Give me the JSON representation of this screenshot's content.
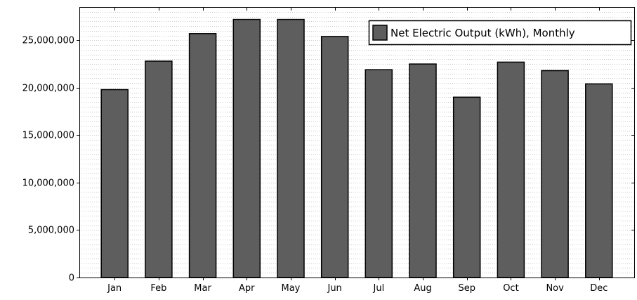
{
  "chart_data": {
    "type": "bar",
    "categories": [
      "Jan",
      "Feb",
      "Mar",
      "Apr",
      "May",
      "Jun",
      "Jul",
      "Aug",
      "Sep",
      "Oct",
      "Nov",
      "Dec"
    ],
    "series": [
      {
        "name": "Net Electric Output (kWh), Monthly",
        "values": [
          19800000,
          22800000,
          25700000,
          27200000,
          27200000,
          25400000,
          21900000,
          22500000,
          19000000,
          22700000,
          21800000,
          20400000
        ]
      }
    ],
    "title": "",
    "xlabel": "",
    "ylabel": "",
    "ylim": [
      0,
      28500000
    ],
    "yticks": [
      0,
      5000000,
      10000000,
      15000000,
      20000000,
      25000000
    ],
    "ytick_labels": [
      "0",
      "5,000,000",
      "10,000,000",
      "15,000,000",
      "20,000,000",
      "25,000,000"
    ],
    "minor_grid_step": 500000,
    "grid": true,
    "legend_position": "top-right",
    "colors": {
      "bar": "#5e5e5e",
      "bar_stroke": "#000000",
      "grid": "#c8c8c8",
      "axis": "#000000"
    }
  }
}
